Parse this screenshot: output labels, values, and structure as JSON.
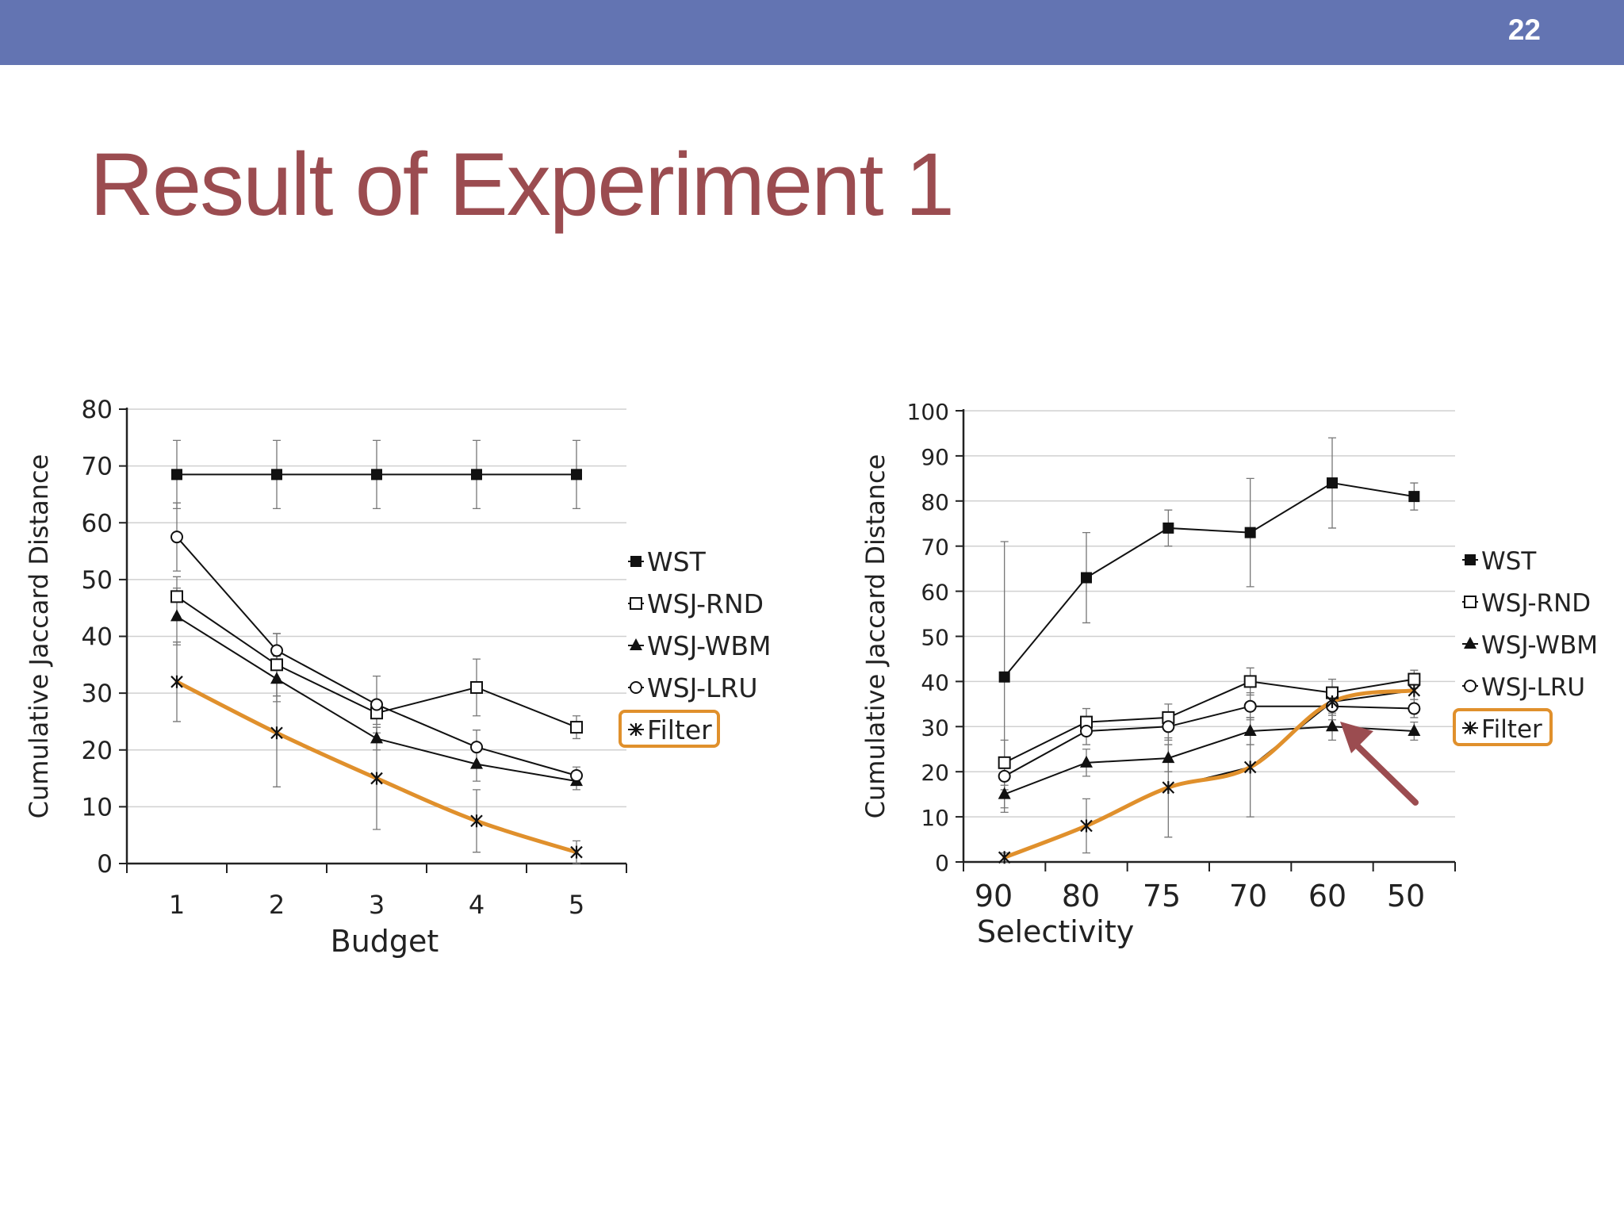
{
  "slide": {
    "number": "22",
    "title": "Result of Experiment 1"
  },
  "colors": {
    "header_band": "#6374b2",
    "title": "#9b4c50",
    "highlight": "#e0902c",
    "arrow": "#9b4c50",
    "series": "#111111",
    "grid": "#d0d0d0"
  },
  "chart_data": [
    {
      "type": "line",
      "xlabel": "Budget",
      "ylabel": "Cumulative Jaccard Distance",
      "categories": [
        "1",
        "2",
        "3",
        "4",
        "5"
      ],
      "ylim": [
        0,
        80
      ],
      "yticks": [
        0,
        10,
        20,
        30,
        40,
        50,
        60,
        70,
        80
      ],
      "grid": true,
      "legend": "right",
      "highlighted_series": "Filter",
      "series": [
        {
          "name": "WST",
          "marker": "filled-square",
          "values": [
            68.5,
            68.5,
            68.5,
            68.5,
            68.5
          ],
          "err": [
            6,
            6,
            6,
            6,
            6
          ]
        },
        {
          "name": "WSJ-RND",
          "marker": "open-square",
          "values": [
            47,
            35,
            26.5,
            31,
            24
          ],
          "err": [
            3.5,
            5.5,
            2,
            5,
            2
          ]
        },
        {
          "name": "WSJ-WBM",
          "marker": "filled-triangle",
          "values": [
            43.5,
            32.5,
            22,
            17.5,
            14.5
          ],
          "err": [
            5,
            4,
            2,
            3,
            1.5
          ]
        },
        {
          "name": "WSJ-LRU",
          "marker": "open-circle",
          "values": [
            57.5,
            37.5,
            28,
            20.5,
            15.5
          ],
          "err": [
            6,
            3,
            5,
            3,
            1.5
          ]
        },
        {
          "name": "Filter",
          "marker": "cross",
          "values": [
            32,
            23,
            15,
            7.5,
            2
          ],
          "err": [
            7,
            9.5,
            9,
            5.5,
            2
          ]
        }
      ]
    },
    {
      "type": "line",
      "xlabel": "Selectivity",
      "ylabel": "Cumulative Jaccard Distance",
      "categories": [
        "90",
        "80",
        "75",
        "70",
        "60",
        "50"
      ],
      "ylim": [
        0,
        100
      ],
      "yticks": [
        0,
        10,
        20,
        30,
        40,
        50,
        60,
        70,
        80,
        90,
        100
      ],
      "grid": true,
      "legend": "right",
      "highlighted_series": "Filter",
      "series": [
        {
          "name": "WST",
          "marker": "filled-square",
          "values": [
            41,
            63,
            74,
            73,
            84,
            81
          ],
          "err": [
            30,
            10,
            4,
            12,
            10,
            3
          ]
        },
        {
          "name": "WSJ-RND",
          "marker": "open-square",
          "values": [
            22,
            31,
            32,
            40,
            37.5,
            40.5
          ],
          "err": [
            5,
            3,
            3,
            3,
            3,
            2
          ]
        },
        {
          "name": "WSJ-WBM",
          "marker": "filled-triangle",
          "values": [
            15,
            22,
            23,
            29,
            30,
            29
          ],
          "err": [
            3,
            3,
            3,
            3,
            3,
            2
          ]
        },
        {
          "name": "WSJ-LRU",
          "marker": "open-circle",
          "values": [
            19,
            29,
            30,
            34.5,
            34.5,
            34
          ],
          "err": [
            3,
            3,
            3,
            3,
            3,
            2
          ]
        },
        {
          "name": "Filter",
          "marker": "cross",
          "values": [
            1,
            8,
            16.5,
            21,
            35.5,
            38
          ],
          "err": [
            1,
            6,
            11,
            11,
            3,
            2
          ]
        }
      ]
    }
  ]
}
